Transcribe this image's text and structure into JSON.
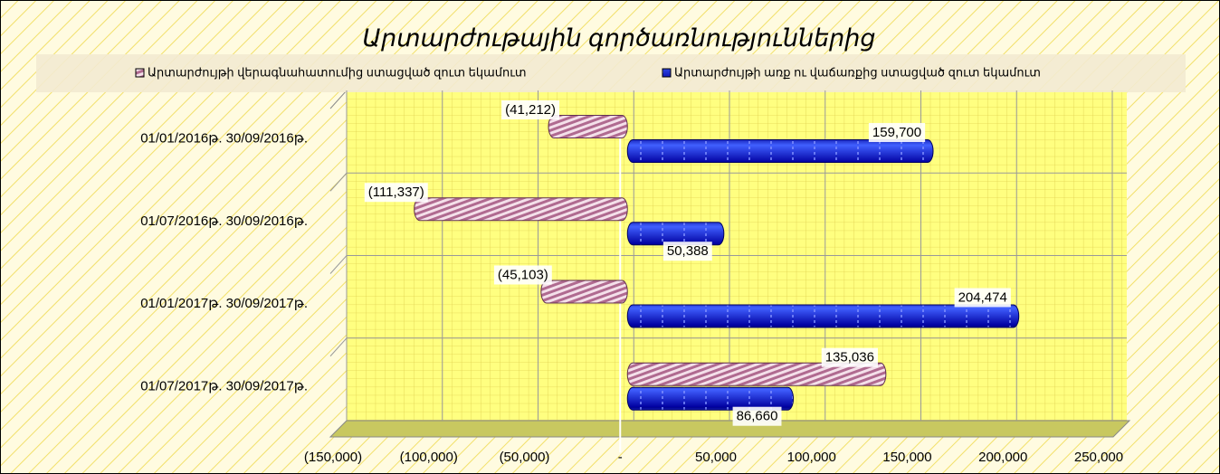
{
  "chart_data": {
    "type": "hbar",
    "title": "Արտարժութային գործառնություններից",
    "categories": [
      "01/01/2016թ.  30/09/2016թ.",
      "01/07/2016թ.  30/09/2016թ.",
      "01/01/2017թ.  30/09/2017թ.",
      "01/07/2017թ.  30/09/2017թ."
    ],
    "series": [
      {
        "name": "Արտարժույթի վերագնահատումից ստացված զուտ եկամուտ",
        "color": "#c9a0b8",
        "values": [
          -41212,
          -111337,
          -45103,
          135036
        ],
        "value_labels": [
          "(41,212)",
          "(111,337)",
          "(45,103)",
          "135,036"
        ]
      },
      {
        "name": "Արտարժույթի առք ու վաճառքից ստացված զուտ եկամուտ",
        "color": "#0000ee",
        "values": [
          159700,
          50388,
          204474,
          86660
        ],
        "value_labels": [
          "159,700",
          "50,388",
          "204,474",
          "86,660"
        ]
      }
    ],
    "xlim": [
      -150000,
      250000
    ],
    "xticks": [
      {
        "value": -150000,
        "label": "(150,000)"
      },
      {
        "value": -100000,
        "label": "(100,000)"
      },
      {
        "value": -50000,
        "label": "(50,000)"
      },
      {
        "value": 0,
        "label": "-"
      },
      {
        "value": 50000,
        "label": "50,000"
      },
      {
        "value": 100000,
        "label": "100,000"
      },
      {
        "value": 150000,
        "label": "150,000"
      },
      {
        "value": 200000,
        "label": "200,000"
      },
      {
        "value": 250000,
        "label": "250,000"
      }
    ],
    "grid": true,
    "legend": "top"
  }
}
